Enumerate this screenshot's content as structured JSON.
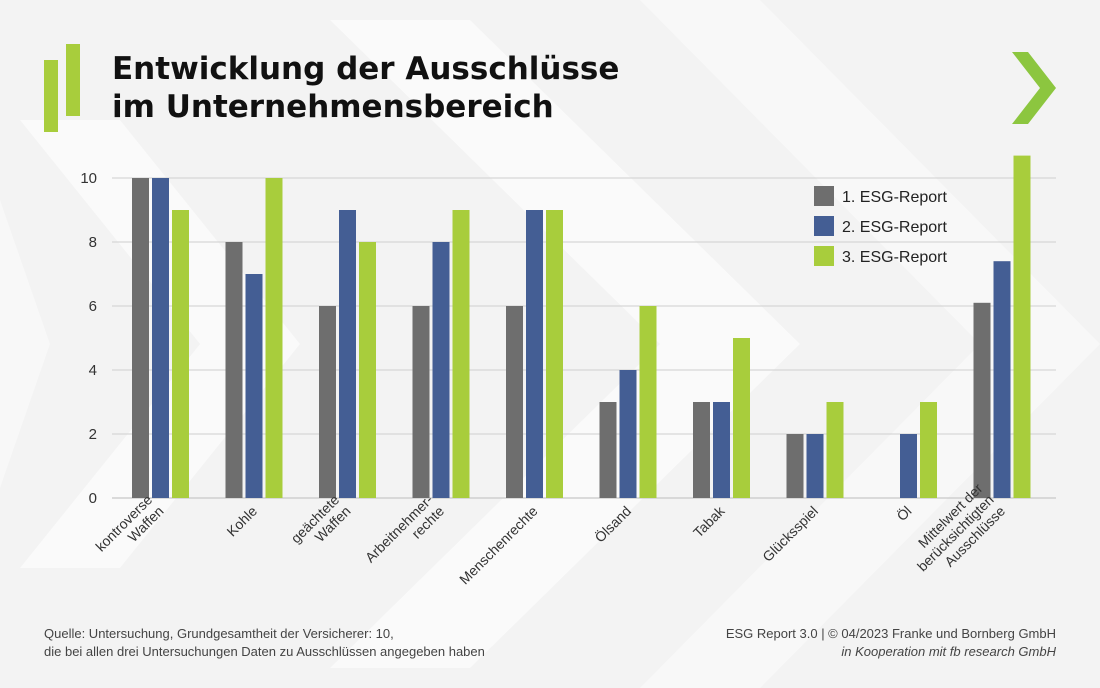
{
  "header": {
    "title_line1": "Entwicklung der Ausschlüsse",
    "title_line2": "im Unternehmensbereich"
  },
  "colors": {
    "series1": "#6e6e6e",
    "series2": "#445e94",
    "series3": "#a8cd3c",
    "accent_green": "#8cc63f",
    "grid": "#cfcfcf"
  },
  "icons": {
    "logo": "green-bars-logo-icon",
    "arrow": "chevron-right-icon"
  },
  "chart_data": {
    "type": "bar",
    "categories": [
      [
        "kontroverse",
        "Waffen"
      ],
      [
        "Kohle"
      ],
      [
        "geächtete",
        "Waffen"
      ],
      [
        "Arbeitnehmer-",
        "rechte"
      ],
      [
        "Menschenrechte"
      ],
      [
        "Ölsand"
      ],
      [
        "Tabak"
      ],
      [
        "Glücksspiel"
      ],
      [
        "Öl"
      ],
      [
        "Mittelwert der",
        "berücksichtigten",
        "Ausschlüsse"
      ]
    ],
    "series": [
      {
        "name": "1. ESG-Report",
        "values": [
          10,
          8,
          6,
          6,
          6,
          3,
          3,
          2,
          null,
          6.1
        ]
      },
      {
        "name": "2. ESG-Report",
        "values": [
          10,
          7,
          9,
          8,
          9,
          4,
          3,
          2,
          2,
          7.4
        ]
      },
      {
        "name": "3. ESG-Report",
        "values": [
          9,
          10,
          8,
          9,
          9,
          6,
          5,
          3,
          3,
          10.7
        ]
      }
    ],
    "yticks": [
      0,
      2,
      4,
      6,
      8,
      10
    ],
    "ylim": [
      0,
      11
    ],
    "grid": true,
    "legend_position": "top-right"
  },
  "footer": {
    "source_line1": "Quelle: Untersuchung, Grundgesamtheit der Versicherer: 10,",
    "source_line2": "die bei allen drei Untersuchungen Daten zu Ausschlüssen angegeben haben",
    "credit_line1": "ESG Report 3.0 | © 04/2023 Franke und Bornberg GmbH",
    "credit_line2": "in Kooperation mit fb research GmbH"
  }
}
